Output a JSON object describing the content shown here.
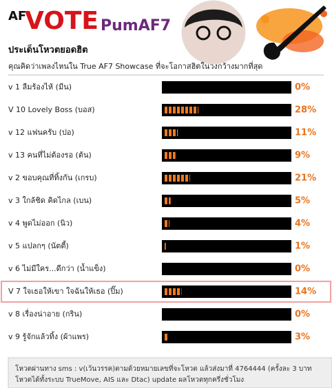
{
  "header": {
    "logo_small": "AF",
    "logo_big": "VOTE",
    "logo_name": "PumAF7"
  },
  "poll": {
    "title": "ประเด็นโหวตยอดฮิต",
    "question": "คุณคิดว่าเพลงไหนใน True AF7 Showcase ที่จะโอกาสฮิตในวงกว้างมากที่สุด",
    "rows": [
      {
        "label": "v 1 ลืมร้องไห้ (มีน)",
        "value": 0,
        "value_label": "0%"
      },
      {
        "label": "V 10 Lovely Boss (บอส)",
        "value": 28,
        "value_label": "28%"
      },
      {
        "label": "v 12 แฟนครับ (ปอ)",
        "value": 11,
        "value_label": "11%"
      },
      {
        "label": "v 13 คนที่ไม่ต้องรอ (ต้น)",
        "value": 9,
        "value_label": "9%"
      },
      {
        "label": "v 2 ขอบคุณที่ทิ้งกัน (เกรบ)",
        "value": 21,
        "value_label": "21%"
      },
      {
        "label": "v 3 ใกล้ชิด คิดไกล (เบน)",
        "value": 5,
        "value_label": "5%"
      },
      {
        "label": "v 4 พูดไม่ออก (นิว)",
        "value": 4,
        "value_label": "4%"
      },
      {
        "label": "v 5 แปลกๆ (นัตตี้)",
        "value": 1,
        "value_label": "1%"
      },
      {
        "label": "v 6 ไม่มีใคร...ดีกว่า (น้ำแข็ง)",
        "value": 0,
        "value_label": "0%"
      },
      {
        "label": "V 7 ใจเธอให้เขา ใจฉันให้เธอ (ปิ๊ม)",
        "value": 14,
        "value_label": "14%",
        "highlighted": true
      },
      {
        "label": "v 8 เรื่องน่าอาย (กริน)",
        "value": 0,
        "value_label": "0%"
      },
      {
        "label": "v 9 รู้จักแล้วทิ้ง (ผ้าแพร)",
        "value": 3,
        "value_label": "3%"
      }
    ],
    "footer": [
      "โหวตผ่านทาง sms : v(เว้นวรรค)ตามด้วยหมายเลขที่จะโหวต แล้วส่งมาที่ 4764444 (ครั้งละ 3 บาท",
      "โหวตได้ทั้งระบบ TrueMove, AIS และ Dtac) update ผลโหวตทุกครึ่งชั่วโมง"
    ]
  }
}
